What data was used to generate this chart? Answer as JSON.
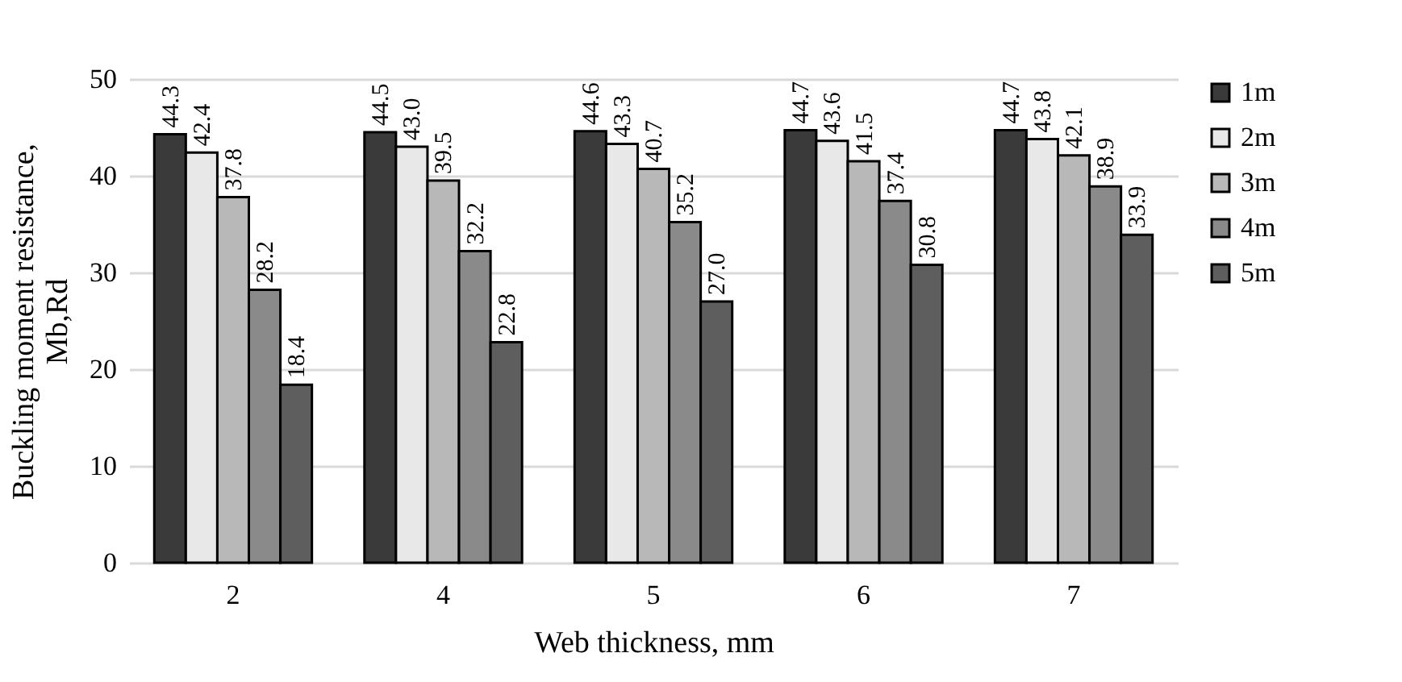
{
  "chart_data": {
    "type": "bar",
    "xlabel": "Web thickness, mm",
    "ylabel": "Buckling moment resistance, Mb,Rd",
    "categories": [
      "2",
      "4",
      "5",
      "6",
      "7"
    ],
    "series": [
      {
        "name": "1m",
        "color": "#3a3a3a",
        "values": [
          44.3,
          44.5,
          44.6,
          44.7,
          44.7
        ],
        "value_labels": [
          "44.3",
          "44.5",
          "44.6",
          "44.7",
          "44.7"
        ]
      },
      {
        "name": "2m",
        "color": "#e8e8e8",
        "values": [
          42.4,
          43.0,
          43.3,
          43.6,
          43.8
        ],
        "value_labels": [
          "42.4",
          "43.0",
          "43.3",
          "43.6",
          "43.8"
        ]
      },
      {
        "name": "3m",
        "color": "#b8b8b8",
        "values": [
          37.8,
          39.5,
          40.7,
          41.5,
          42.1
        ],
        "value_labels": [
          "37.8",
          "39.5",
          "40.7",
          "41.5",
          "42.1"
        ]
      },
      {
        "name": "4m",
        "color": "#8a8a8a",
        "values": [
          28.2,
          32.2,
          35.2,
          37.4,
          38.9
        ],
        "value_labels": [
          "28.2",
          "32.2",
          "35.2",
          "37.4",
          "38.9"
        ]
      },
      {
        "name": "5m",
        "color": "#5e5e5e",
        "values": [
          18.4,
          22.8,
          27.0,
          30.8,
          33.9
        ],
        "value_labels": [
          "18.4",
          "22.8",
          "27.0",
          "30.8",
          "33.9"
        ]
      }
    ],
    "ylim": [
      0,
      50
    ],
    "yticks": [
      0,
      10,
      20,
      30,
      40,
      50
    ],
    "grid": "y",
    "legend": "right"
  }
}
